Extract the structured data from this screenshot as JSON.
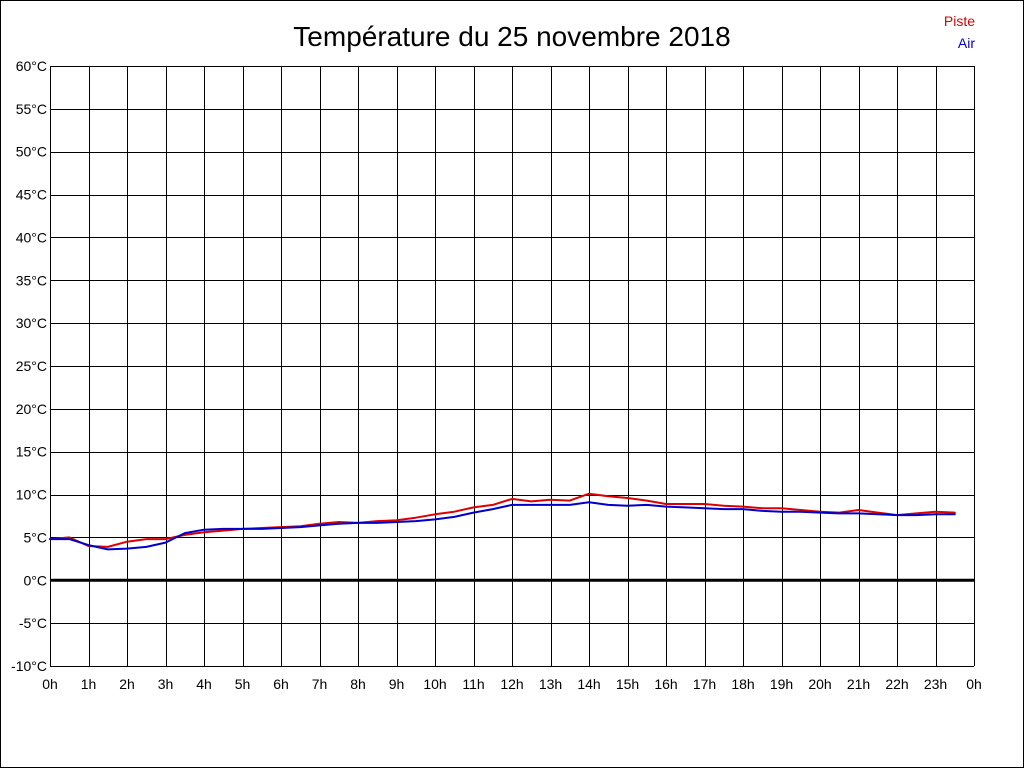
{
  "chart_data": {
    "type": "line",
    "title": "Température du 25 novembre 2018",
    "xlabel": "",
    "ylabel": "",
    "x_tick_labels": [
      "0h",
      "1h",
      "2h",
      "3h",
      "4h",
      "5h",
      "6h",
      "7h",
      "8h",
      "9h",
      "10h",
      "11h",
      "12h",
      "13h",
      "14h",
      "15h",
      "16h",
      "17h",
      "18h",
      "19h",
      "20h",
      "21h",
      "22h",
      "23h",
      "0h"
    ],
    "y_tick_labels": [
      "-10°C",
      "-5°C",
      "0°C",
      "5°C",
      "10°C",
      "15°C",
      "20°C",
      "25°C",
      "30°C",
      "35°C",
      "40°C",
      "45°C",
      "50°C",
      "55°C",
      "60°C"
    ],
    "xlim": [
      0,
      24
    ],
    "ylim": [
      -10,
      60
    ],
    "grid": true,
    "legend_position": "top-right",
    "zero_line": true,
    "series": [
      {
        "name": "Piste",
        "color": "#dd0000",
        "x": [
          0,
          0.5,
          1,
          1.5,
          2,
          2.5,
          3,
          3.5,
          4,
          4.5,
          5,
          5.5,
          6,
          6.5,
          7,
          7.5,
          8,
          8.5,
          9,
          9.5,
          10,
          10.5,
          11,
          11.5,
          12,
          12.5,
          13,
          13.5,
          14,
          14.5,
          15,
          15.5,
          16,
          16.5,
          17,
          17.5,
          18,
          18.5,
          19,
          19.5,
          20,
          20.5,
          21,
          21.5,
          22,
          22.5,
          23,
          23.5
        ],
        "y": [
          4.8,
          5.0,
          4.0,
          3.9,
          4.5,
          4.8,
          4.8,
          5.3,
          5.6,
          5.8,
          6.0,
          6.1,
          6.2,
          6.3,
          6.6,
          6.8,
          6.7,
          6.9,
          7.0,
          7.3,
          7.7,
          8.0,
          8.5,
          8.8,
          9.5,
          9.2,
          9.4,
          9.3,
          10.1,
          9.8,
          9.6,
          9.3,
          8.9,
          8.9,
          8.9,
          8.7,
          8.6,
          8.4,
          8.4,
          8.2,
          8.0,
          7.9,
          8.2,
          7.9,
          7.6,
          7.8,
          8.0,
          7.9
        ]
      },
      {
        "name": "Air",
        "color": "#0000cc",
        "x": [
          0,
          0.5,
          1,
          1.5,
          2,
          2.5,
          3,
          3.5,
          4,
          4.5,
          5,
          5.5,
          6,
          6.5,
          7,
          7.5,
          8,
          8.5,
          9,
          9.5,
          10,
          10.5,
          11,
          11.5,
          12,
          12.5,
          13,
          13.5,
          14,
          14.5,
          15,
          15.5,
          16,
          16.5,
          17,
          17.5,
          18,
          18.5,
          19,
          19.5,
          20,
          20.5,
          21,
          21.5,
          22,
          22.5,
          23,
          23.5
        ],
        "y": [
          4.8,
          4.8,
          4.1,
          3.6,
          3.7,
          3.9,
          4.4,
          5.5,
          5.9,
          6.0,
          6.0,
          6.0,
          6.1,
          6.2,
          6.4,
          6.6,
          6.7,
          6.7,
          6.8,
          6.9,
          7.1,
          7.4,
          7.9,
          8.3,
          8.8,
          8.8,
          8.8,
          8.8,
          9.1,
          8.8,
          8.7,
          8.8,
          8.6,
          8.5,
          8.4,
          8.3,
          8.3,
          8.1,
          8.0,
          8.0,
          7.9,
          7.8,
          7.8,
          7.7,
          7.6,
          7.6,
          7.7,
          7.7
        ]
      }
    ]
  }
}
